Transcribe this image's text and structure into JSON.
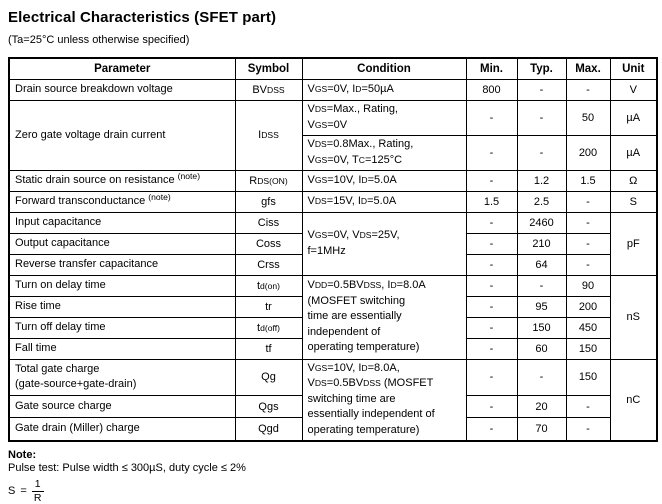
{
  "title": "Electrical Characteristics (SFET part)",
  "subtitle": "(Ta=25°C unless otherwise specified)",
  "table": {
    "headers": [
      "Parameter",
      "Symbol",
      "Condition",
      "Min.",
      "Typ.",
      "Max.",
      "Unit"
    ],
    "rows": {
      "bvdss": {
        "param": "Drain source breakdown voltage",
        "sym": [
          {
            "t": "BV"
          },
          {
            "s": "DSS"
          }
        ],
        "cond": [
          {
            "t": "V"
          },
          {
            "s": "GS"
          },
          {
            "t": "=0V, I"
          },
          {
            "s": "D"
          },
          {
            "t": "=50µA"
          }
        ],
        "min": "800",
        "typ": "-",
        "max": "-",
        "unit": "V"
      },
      "idss": {
        "param": "Zero gate voltage drain current",
        "sym": [
          {
            "t": "I"
          },
          {
            "s": "DSS"
          }
        ]
      },
      "idss_a": {
        "cond": [
          {
            "t": "V"
          },
          {
            "s": "DS"
          },
          {
            "t": "=Max., Rating,"
          },
          {
            "br": true
          },
          {
            "t": "V"
          },
          {
            "s": "GS"
          },
          {
            "t": "=0V"
          }
        ],
        "min": "-",
        "typ": "-",
        "max": "50",
        "unit": "µA"
      },
      "idss_b": {
        "cond": [
          {
            "t": "V"
          },
          {
            "s": "DS"
          },
          {
            "t": "=0.8Max., Rating,"
          },
          {
            "br": true
          },
          {
            "t": "V"
          },
          {
            "s": "GS"
          },
          {
            "t": "=0V, T"
          },
          {
            "s": "C"
          },
          {
            "t": "=125°C"
          }
        ],
        "min": "-",
        "typ": "-",
        "max": "200",
        "unit": "µA"
      },
      "rdson": {
        "param": [
          {
            "t": "Static drain source on resistance "
          },
          {
            "u": "(note)"
          }
        ],
        "sym": [
          {
            "t": "R"
          },
          {
            "s": "DS(ON)"
          }
        ],
        "cond": [
          {
            "t": "V"
          },
          {
            "s": "GS"
          },
          {
            "t": "=10V, I"
          },
          {
            "s": "D"
          },
          {
            "t": "=5.0A"
          }
        ],
        "min": "-",
        "typ": "1.2",
        "max": "1.5",
        "unit": "Ω"
      },
      "gfs": {
        "param": [
          {
            "t": "Forward transconductance "
          },
          {
            "u": "(note)"
          }
        ],
        "sym": "gfs",
        "cond": [
          {
            "t": "V"
          },
          {
            "s": "DS"
          },
          {
            "t": "=15V, I"
          },
          {
            "s": "D"
          },
          {
            "t": "=5.0A"
          }
        ],
        "min": "1.5",
        "typ": "2.5",
        "max": "-",
        "unit": "S"
      },
      "cap_cond": [
        {
          "t": "V"
        },
        {
          "s": "GS"
        },
        {
          "t": "=0V, V"
        },
        {
          "s": "DS"
        },
        {
          "t": "=25V,"
        },
        {
          "br": true
        },
        {
          "t": "f=1MHz"
        }
      ],
      "cap_unit": "pF",
      "ciss": {
        "param": "Input capacitance",
        "sym": "Ciss",
        "min": "-",
        "typ": "2460",
        "max": "-"
      },
      "coss": {
        "param": "Output capacitance",
        "sym": "Coss",
        "min": "-",
        "typ": "210",
        "max": "-"
      },
      "crss": {
        "param": "Reverse transfer capacitance",
        "sym": "Crss",
        "min": "-",
        "typ": "64",
        "max": "-"
      },
      "sw_cond": [
        {
          "t": "V"
        },
        {
          "s": "DD"
        },
        {
          "t": "=0.5BV"
        },
        {
          "s": "DSS"
        },
        {
          "t": ", I"
        },
        {
          "s": "D"
        },
        {
          "t": "=8.0A"
        },
        {
          "br": true
        },
        {
          "t": "(MOSFET switching"
        },
        {
          "br": true
        },
        {
          "t": "time are essentially"
        },
        {
          "br": true
        },
        {
          "t": "independent of"
        },
        {
          "br": true
        },
        {
          "t": "operating temperature)"
        }
      ],
      "sw_unit": "nS",
      "tdon": {
        "param": "Turn on delay time",
        "sym": [
          {
            "t": "t"
          },
          {
            "s": "d(on)"
          }
        ],
        "min": "-",
        "typ": "-",
        "max": "90"
      },
      "tr": {
        "param": "Rise time",
        "sym": "tr",
        "min": "-",
        "typ": "95",
        "max": "200"
      },
      "tdoff": {
        "param": "Turn off delay time",
        "sym": [
          {
            "t": "t"
          },
          {
            "s": "d(off)"
          }
        ],
        "min": "-",
        "typ": "150",
        "max": "450"
      },
      "tf": {
        "param": "Fall time",
        "sym": "tf",
        "min": "-",
        "typ": "60",
        "max": "150"
      },
      "qg_cond": [
        {
          "t": "V"
        },
        {
          "s": "GS"
        },
        {
          "t": "=10V, I"
        },
        {
          "s": "D"
        },
        {
          "t": "=8.0A,"
        },
        {
          "br": true
        },
        {
          "t": "V"
        },
        {
          "s": "DS"
        },
        {
          "t": "=0.5BV"
        },
        {
          "s": "DSS"
        },
        {
          "t": " (MOSFET"
        },
        {
          "br": true
        },
        {
          "t": "switching time are"
        },
        {
          "br": true
        },
        {
          "t": "essentially independent of"
        },
        {
          "br": true
        },
        {
          "t": "operating temperature)"
        }
      ],
      "qg_unit": "nC",
      "qg": {
        "param": [
          {
            "t": "Total gate charge"
          },
          {
            "br": true
          },
          {
            "t": "(gate-source+gate-drain)"
          }
        ],
        "sym": "Qg",
        "min": "-",
        "typ": "-",
        "max": "150"
      },
      "qgs": {
        "param": "Gate source charge",
        "sym": "Qgs",
        "min": "-",
        "typ": "20",
        "max": "-"
      },
      "qgd": {
        "param": "Gate drain (Miller) charge",
        "sym": "Qgd",
        "min": "-",
        "typ": "70",
        "max": "-"
      }
    }
  },
  "note": {
    "label": "Note:",
    "pulse": "Pulse test: Pulse width ≤ 300µS, duty cycle ≤ 2%",
    "formula": {
      "lhs": "S",
      "eq": "=",
      "num": "1",
      "den": "R"
    }
  }
}
